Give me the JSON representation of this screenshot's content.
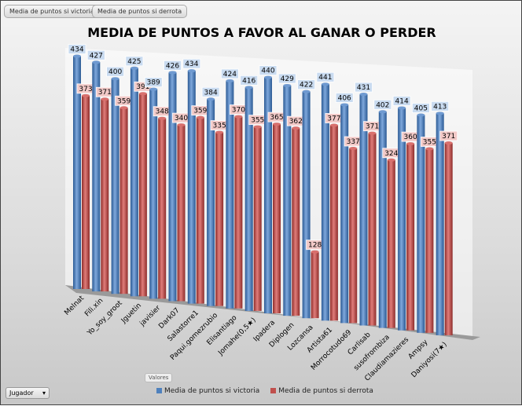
{
  "filters": {
    "victoria": "Media de puntos si victoria",
    "derrota": "Media de puntos si derrota"
  },
  "field_buttons": {
    "valores": "Valores",
    "jugador": "Jugador"
  },
  "chart_data": {
    "type": "bar",
    "title": "MEDIA DE PUNTOS A FAVOR AL GANAR O PERDER",
    "categories": [
      "Melnat",
      "Fili.xin",
      "Yo_soy_groot",
      "Jguetin",
      "javisier",
      "Dark07",
      "Salastorre1",
      "Paqui.gomezrubio",
      "Elisantiago",
      "Jomahe(0,5★)",
      "Ipadera",
      "Diplogen",
      "Lozcansa",
      "Artista61",
      "Morrocotudo69",
      "Carlisab",
      "susofrombiza",
      "Claudiamazieres",
      "Ampsy",
      "Daniyosi(7★)"
    ],
    "series": [
      {
        "name": "Media de puntos si victoria",
        "color": "#4f81bd",
        "values": [
          434,
          427,
          400,
          425,
          389,
          426,
          434,
          384,
          424,
          416,
          440,
          429,
          422,
          441,
          406,
          431,
          402,
          414,
          405,
          413
        ]
      },
      {
        "name": "Media de puntos si derrota",
        "color": "#c0504d",
        "values": [
          373,
          371,
          359,
          391,
          348,
          340,
          359,
          335,
          370,
          355,
          365,
          362,
          128,
          377,
          337,
          371,
          324,
          360,
          355,
          371
        ]
      }
    ],
    "ylim": [
      0,
      450
    ],
    "legend": "bottom"
  }
}
